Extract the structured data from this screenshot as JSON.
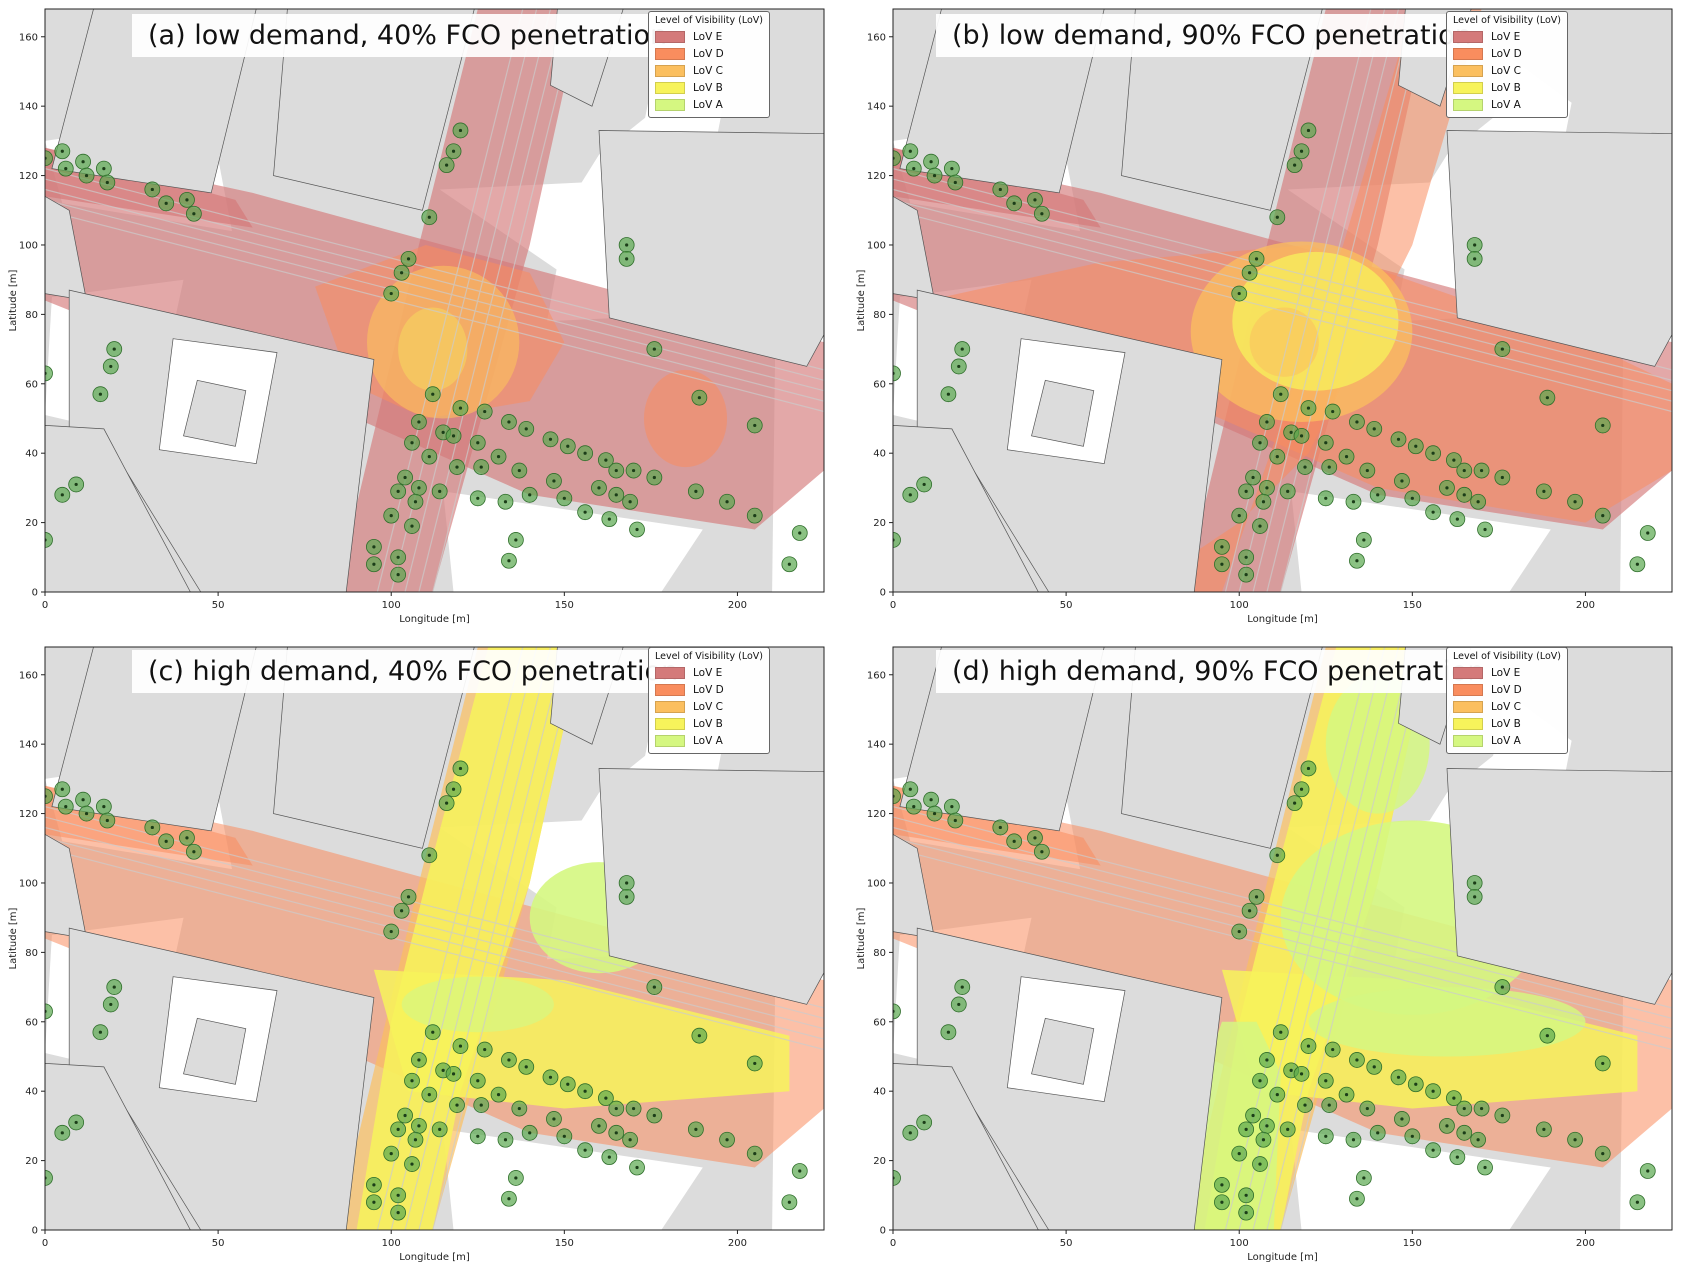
{
  "legend": {
    "title": "Level of Visibility (LoV)",
    "items": [
      {
        "label": "LoV E",
        "color": "#d47a7a"
      },
      {
        "label": "LoV D",
        "color": "#f98d5e"
      },
      {
        "label": "LoV C",
        "color": "#fbbf5f"
      },
      {
        "label": "LoV B",
        "color": "#f7f35b"
      },
      {
        "label": "LoV A",
        "color": "#d5f781"
      }
    ]
  },
  "axes": {
    "xlabel": "Longitude [m]",
    "ylabel": "Latitude [m]",
    "xticks": [
      "0",
      "50",
      "100",
      "150",
      "200"
    ],
    "yticks": [
      "0",
      "20",
      "40",
      "60",
      "80",
      "100",
      "120",
      "140",
      "160"
    ],
    "xlim": [
      0,
      225
    ],
    "ylim": [
      0,
      168
    ]
  },
  "panels": [
    {
      "title": "(a) low demand, 40% FCO penetration",
      "demand": "low",
      "penetration": 40
    },
    {
      "title": "(b) low demand, 90% FCO penetration",
      "demand": "low",
      "penetration": 90
    },
    {
      "title": "(c) high demand, 40% FCO penetration",
      "demand": "high",
      "penetration": 40
    },
    {
      "title": "(d) high demand, 90% FCO penetration",
      "demand": "high",
      "penetration": 90
    }
  ],
  "trees": [
    [
      0,
      125
    ],
    [
      5,
      127
    ],
    [
      6,
      122
    ],
    [
      11,
      124
    ],
    [
      12,
      120
    ],
    [
      17,
      122
    ],
    [
      18,
      118
    ],
    [
      31,
      116
    ],
    [
      35,
      112
    ],
    [
      41,
      113
    ],
    [
      43,
      109
    ],
    [
      120,
      133
    ],
    [
      118,
      127
    ],
    [
      116,
      123
    ],
    [
      111,
      108
    ],
    [
      105,
      96
    ],
    [
      103,
      92
    ],
    [
      100,
      86
    ],
    [
      168,
      100
    ],
    [
      168,
      96
    ],
    [
      176,
      70
    ],
    [
      189,
      56
    ],
    [
      205,
      48
    ],
    [
      218,
      17
    ],
    [
      215,
      8
    ],
    [
      112,
      57
    ],
    [
      120,
      53
    ],
    [
      127,
      52
    ],
    [
      134,
      49
    ],
    [
      139,
      47
    ],
    [
      146,
      44
    ],
    [
      151,
      42
    ],
    [
      156,
      40
    ],
    [
      162,
      38
    ],
    [
      165,
      35
    ],
    [
      170,
      35
    ],
    [
      176,
      33
    ],
    [
      188,
      29
    ],
    [
      197,
      26
    ],
    [
      205,
      22
    ],
    [
      108,
      49
    ],
    [
      115,
      46
    ],
    [
      118,
      45
    ],
    [
      125,
      43
    ],
    [
      131,
      39
    ],
    [
      137,
      35
    ],
    [
      147,
      32
    ],
    [
      140,
      28
    ],
    [
      106,
      43
    ],
    [
      111,
      39
    ],
    [
      108,
      30
    ],
    [
      104,
      33
    ],
    [
      102,
      29
    ],
    [
      107,
      26
    ],
    [
      100,
      22
    ],
    [
      106,
      19
    ],
    [
      95,
      13
    ],
    [
      95,
      8
    ],
    [
      102,
      10
    ],
    [
      102,
      5
    ],
    [
      114,
      29
    ],
    [
      119,
      36
    ],
    [
      126,
      36
    ],
    [
      133,
      26
    ],
    [
      125,
      27
    ],
    [
      136,
      15
    ],
    [
      134,
      9
    ],
    [
      150,
      27
    ],
    [
      156,
      23
    ],
    [
      160,
      30
    ],
    [
      163,
      21
    ],
    [
      165,
      28
    ],
    [
      171,
      18
    ],
    [
      169,
      26
    ],
    [
      0,
      63
    ],
    [
      20,
      70
    ],
    [
      19,
      65
    ],
    [
      16,
      57
    ],
    [
      0,
      15
    ],
    [
      5,
      28
    ],
    [
      9,
      31
    ]
  ],
  "buildings": [
    [
      [
        14,
        168
      ],
      [
        61,
        168
      ],
      [
        48,
        115
      ],
      [
        2,
        122
      ]
    ],
    [
      [
        70,
        168
      ],
      [
        124,
        168
      ],
      [
        109,
        110
      ],
      [
        66,
        120
      ]
    ],
    [
      [
        0,
        114
      ],
      [
        7,
        110
      ],
      [
        12,
        84
      ],
      [
        0,
        86
      ]
    ],
    [
      [
        7,
        87
      ],
      [
        95,
        67
      ],
      [
        87,
        0
      ],
      [
        45,
        0
      ],
      [
        19,
        42
      ],
      [
        7,
        47
      ]
    ],
    [
      [
        148,
        168
      ],
      [
        167,
        168
      ],
      [
        158,
        140
      ],
      [
        146,
        146
      ]
    ],
    [
      [
        160,
        133
      ],
      [
        232,
        132
      ],
      [
        232,
        87
      ],
      [
        220,
        65
      ],
      [
        163,
        79
      ]
    ],
    [
      [
        42,
        0
      ],
      [
        17,
        47
      ],
      [
        0,
        48
      ],
      [
        0,
        0
      ]
    ]
  ],
  "white_patches": [
    [
      [
        0,
        130
      ],
      [
        5,
        112
      ],
      [
        54,
        104
      ],
      [
        50,
        125
      ],
      [
        21,
        133
      ]
    ],
    [
      [
        2,
        85
      ],
      [
        40,
        90
      ],
      [
        30,
        44
      ],
      [
        0,
        51
      ]
    ],
    [
      [
        36,
        47
      ],
      [
        78,
        43
      ],
      [
        64,
        2
      ],
      [
        38,
        16
      ]
    ],
    [
      [
        37,
        73
      ],
      [
        67,
        69
      ],
      [
        61,
        37
      ],
      [
        33,
        41
      ]
    ],
    [
      [
        114,
        116
      ],
      [
        155,
        118
      ],
      [
        160,
        126
      ],
      [
        175,
        138
      ],
      [
        189,
        136
      ],
      [
        186,
        100
      ],
      [
        155,
        88
      ]
    ],
    [
      [
        150,
        105
      ],
      [
        192,
        112
      ],
      [
        186,
        80
      ],
      [
        145,
        78
      ]
    ],
    [
      [
        115,
        29
      ],
      [
        190,
        18
      ],
      [
        178,
        0
      ],
      [
        118,
        0
      ]
    ],
    [
      [
        211,
        78
      ],
      [
        232,
        80
      ],
      [
        232,
        0
      ],
      [
        210,
        0
      ]
    ],
    [
      [
        177,
        155
      ],
      [
        196,
        141
      ],
      [
        190,
        110
      ],
      [
        170,
        120
      ]
    ]
  ]
}
